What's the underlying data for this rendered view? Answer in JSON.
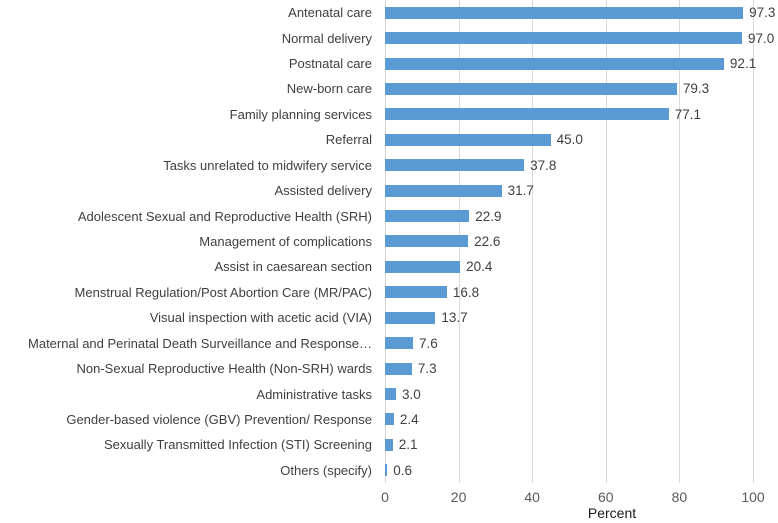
{
  "chart_data": {
    "type": "bar",
    "orientation": "horizontal",
    "title": "",
    "xlabel": "Percent",
    "ylabel": "",
    "xlim": [
      0,
      100
    ],
    "xticks": [
      0,
      20,
      40,
      60,
      80,
      100
    ],
    "grid": "vertical",
    "legend_position": "none",
    "bar_color": "#5b9bd5",
    "gridline_color": "#d9d9d9",
    "categories": [
      "Antenatal care",
      "Normal delivery",
      "Postnatal care",
      "New-born care",
      "Family planning services",
      "Referral",
      "Tasks unrelated to midwifery service",
      "Assisted delivery",
      "Adolescent Sexual and Reproductive Health (SRH)",
      "Management of complications",
      "Assist in caesarean section",
      "Menstrual Regulation/Post Abortion Care (MR/PAC)",
      "Visual inspection with acetic acid (VIA)",
      "Maternal and Perinatal Death Surveillance and Response…",
      "Non-Sexual Reproductive Health (Non-SRH) wards",
      "Administrative tasks",
      "Gender-based violence (GBV) Prevention/ Response",
      "Sexually Transmitted Infection (STI) Screening",
      "Others (specify)"
    ],
    "values": [
      97.3,
      97.0,
      92.1,
      79.3,
      77.1,
      45.0,
      37.8,
      31.7,
      22.9,
      22.6,
      20.4,
      16.8,
      13.7,
      7.6,
      7.3,
      3.0,
      2.4,
      2.1,
      0.6
    ],
    "value_labels": [
      "97.3",
      "97.0",
      "92.1",
      "79.3",
      "77.1",
      "45.0",
      "37.8",
      "31.7",
      "22.9",
      "22.6",
      "20.4",
      "16.8",
      "13.7",
      "7.6",
      "7.3",
      "3.0",
      "2.4",
      "2.1",
      "0.6"
    ],
    "tick_labels": [
      "0",
      "20",
      "40",
      "60",
      "80",
      "100"
    ]
  }
}
